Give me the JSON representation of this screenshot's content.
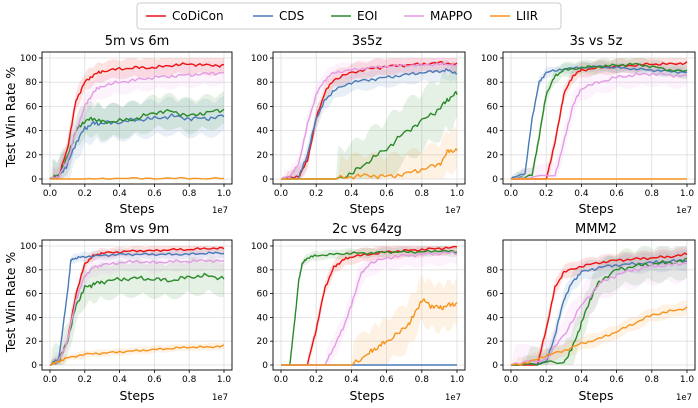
{
  "legend": [
    {
      "name": "CoDiCon",
      "color": "#ee1111"
    },
    {
      "name": "CDS",
      "color": "#4a7ab8"
    },
    {
      "name": "EOI",
      "color": "#2a8a2a"
    },
    {
      "name": "MAPPO",
      "color": "#e39be3"
    },
    {
      "name": "LIIR",
      "color": "#f7941d"
    }
  ],
  "chart_data": [
    {
      "type": "line",
      "title": "5m vs 6m",
      "xlabel": "Steps",
      "ylabel": "Test Win Rate %",
      "xlim": [
        0,
        1.0
      ],
      "ylim": [
        0,
        100
      ],
      "x_multiplier": "1e7",
      "xticks": [
        "0.0",
        "0.2",
        "0.4",
        "0.6",
        "0.8",
        "1.0"
      ],
      "yticks": [
        "0",
        "20",
        "40",
        "60",
        "80",
        "100"
      ],
      "series": [
        {
          "name": "CoDiCon",
          "x": [
            0,
            0.05,
            0.1,
            0.15,
            0.2,
            0.25,
            0.3,
            0.4,
            0.5,
            0.6,
            0.7,
            0.8,
            0.9,
            1.0
          ],
          "y": [
            0,
            2,
            25,
            65,
            80,
            86,
            89,
            91,
            92,
            92,
            94,
            95,
            94,
            94
          ],
          "band": 8
        },
        {
          "name": "CDS",
          "x": [
            0,
            0.05,
            0.1,
            0.15,
            0.2,
            0.25,
            0.3,
            0.4,
            0.5,
            0.6,
            0.7,
            0.8,
            0.9,
            1.0
          ],
          "y": [
            0,
            2,
            12,
            30,
            42,
            46,
            46,
            47,
            49,
            50,
            52,
            50,
            50,
            52
          ],
          "band": 15
        },
        {
          "name": "EOI",
          "x": [
            0,
            0.05,
            0.1,
            0.15,
            0.2,
            0.25,
            0.3,
            0.4,
            0.5,
            0.6,
            0.7,
            0.8,
            0.9,
            1.0
          ],
          "y": [
            0,
            3,
            18,
            40,
            48,
            50,
            47,
            48,
            50,
            55,
            56,
            52,
            55,
            57
          ],
          "band": 14
        },
        {
          "name": "MAPPO",
          "x": [
            0,
            0.05,
            0.1,
            0.15,
            0.2,
            0.25,
            0.3,
            0.4,
            0.5,
            0.6,
            0.7,
            0.8,
            0.9,
            1.0
          ],
          "y": [
            0,
            2,
            15,
            40,
            60,
            72,
            77,
            80,
            82,
            84,
            85,
            86,
            87,
            88
          ],
          "band": 10
        },
        {
          "name": "LIIR",
          "x": [
            0,
            0.2,
            0.4,
            0.6,
            0.8,
            1.0
          ],
          "y": [
            0,
            0,
            0.5,
            0.5,
            0.5,
            0.5
          ],
          "band": 1
        }
      ]
    },
    {
      "type": "line",
      "title": "3s5z",
      "xlabel": "Steps",
      "ylabel": "",
      "xlim": [
        0,
        1.0
      ],
      "ylim": [
        0,
        100
      ],
      "x_multiplier": "1e7",
      "xticks": [
        "0.0",
        "0.2",
        "0.4",
        "0.6",
        "0.8",
        "1.0"
      ],
      "yticks": [
        "0",
        "20",
        "40",
        "60",
        "80",
        "100"
      ],
      "series": [
        {
          "name": "CoDiCon",
          "x": [
            0,
            0.1,
            0.15,
            0.2,
            0.25,
            0.3,
            0.4,
            0.5,
            0.6,
            0.7,
            0.8,
            0.9,
            1.0
          ],
          "y": [
            0,
            2,
            15,
            50,
            72,
            82,
            88,
            91,
            93,
            94,
            95,
            96,
            95
          ],
          "band": 7
        },
        {
          "name": "CDS",
          "x": [
            0,
            0.1,
            0.15,
            0.2,
            0.25,
            0.3,
            0.4,
            0.5,
            0.6,
            0.7,
            0.8,
            0.9,
            0.95,
            1.0
          ],
          "y": [
            0,
            1,
            20,
            50,
            65,
            73,
            80,
            82,
            84,
            86,
            88,
            89,
            90,
            87
          ],
          "band": 8
        },
        {
          "name": "EOI",
          "x": [
            0,
            0.3,
            0.4,
            0.5,
            0.6,
            0.7,
            0.8,
            0.9,
            0.95,
            1.0
          ],
          "y": [
            0,
            0,
            4,
            15,
            25,
            38,
            48,
            58,
            66,
            71
          ],
          "band": 25
        },
        {
          "name": "MAPPO",
          "x": [
            0,
            0.05,
            0.1,
            0.15,
            0.2,
            0.25,
            0.3,
            0.4,
            0.5,
            0.6,
            0.7,
            0.8,
            0.9,
            1.0
          ],
          "y": [
            0,
            2,
            12,
            45,
            70,
            82,
            88,
            90,
            92,
            93,
            94,
            94,
            95,
            94
          ],
          "band": 7
        },
        {
          "name": "LIIR",
          "x": [
            0,
            0.3,
            0.4,
            0.5,
            0.6,
            0.7,
            0.8,
            0.9,
            0.95,
            1.0
          ],
          "y": [
            0,
            0,
            2,
            3,
            2,
            4,
            8,
            12,
            23,
            24
          ],
          "band": 18
        }
      ]
    },
    {
      "type": "line",
      "title": "3s vs 5z",
      "xlabel": "Steps",
      "ylabel": "",
      "xlim": [
        0,
        1.0
      ],
      "ylim": [
        0,
        100
      ],
      "x_multiplier": "1e7",
      "xticks": [
        "0.0",
        "0.2",
        "0.4",
        "0.6",
        "0.8",
        "1.0"
      ],
      "yticks": [
        "0",
        "20",
        "40",
        "60",
        "80",
        "100"
      ],
      "series": [
        {
          "name": "CoDiCon",
          "x": [
            0,
            0.2,
            0.25,
            0.3,
            0.35,
            0.4,
            0.5,
            0.6,
            0.7,
            0.8,
            0.9,
            1.0
          ],
          "y": [
            0,
            0,
            30,
            70,
            85,
            90,
            92,
            93,
            94,
            95,
            95,
            96
          ],
          "band": 6
        },
        {
          "name": "CDS",
          "x": [
            0,
            0.08,
            0.12,
            0.16,
            0.2,
            0.3,
            0.4,
            0.5,
            0.6,
            0.7,
            0.8,
            0.9,
            1.0
          ],
          "y": [
            0,
            5,
            50,
            80,
            88,
            91,
            92,
            93,
            92,
            91,
            90,
            89,
            88
          ],
          "band": 4
        },
        {
          "name": "EOI",
          "x": [
            0,
            0.12,
            0.16,
            0.2,
            0.25,
            0.3,
            0.4,
            0.5,
            0.6,
            0.7,
            0.8,
            0.9,
            1.0
          ],
          "y": [
            0,
            3,
            35,
            70,
            85,
            90,
            92,
            93,
            94,
            95,
            93,
            90,
            89
          ],
          "band": 6
        },
        {
          "name": "MAPPO",
          "x": [
            0,
            0.25,
            0.3,
            0.35,
            0.4,
            0.5,
            0.6,
            0.7,
            0.8,
            0.9,
            1.0
          ],
          "y": [
            0,
            3,
            30,
            60,
            75,
            80,
            84,
            86,
            87,
            86,
            85
          ],
          "band": 10
        },
        {
          "name": "LIIR",
          "x": [
            0,
            0.2,
            0.4,
            0.6,
            0.8,
            1.0
          ],
          "y": [
            0,
            0,
            0,
            0,
            0,
            0
          ],
          "band": 0
        }
      ]
    },
    {
      "type": "line",
      "title": "8m vs 9m",
      "xlabel": "Steps",
      "ylabel": "Test Win Rate %",
      "xlim": [
        0,
        1.0
      ],
      "ylim": [
        0,
        100
      ],
      "x_multiplier": "1e7",
      "xticks": [
        "0.0",
        "0.2",
        "0.4",
        "0.6",
        "0.8",
        "1.0"
      ],
      "yticks": [
        "0",
        "20",
        "40",
        "60",
        "80",
        "100"
      ],
      "series": [
        {
          "name": "CoDiCon",
          "x": [
            0,
            0.05,
            0.1,
            0.15,
            0.2,
            0.25,
            0.3,
            0.4,
            0.5,
            0.6,
            0.7,
            0.8,
            0.9,
            1.0
          ],
          "y": [
            0,
            3,
            20,
            60,
            85,
            92,
            94,
            95,
            96,
            96,
            97,
            97,
            98,
            98
          ],
          "band": 4
        },
        {
          "name": "CDS",
          "x": [
            0,
            0.05,
            0.1,
            0.12,
            0.15,
            0.2,
            0.3,
            0.4,
            0.5,
            0.6,
            0.7,
            0.8,
            0.9,
            1.0
          ],
          "y": [
            0,
            5,
            60,
            88,
            90,
            91,
            92,
            93,
            93,
            93,
            93,
            93,
            94,
            94
          ],
          "band": 4
        },
        {
          "name": "EOI",
          "x": [
            0,
            0.05,
            0.1,
            0.15,
            0.2,
            0.25,
            0.3,
            0.4,
            0.5,
            0.6,
            0.7,
            0.8,
            0.9,
            1.0
          ],
          "y": [
            0,
            3,
            20,
            50,
            65,
            68,
            70,
            72,
            73,
            72,
            71,
            74,
            75,
            73
          ],
          "band": 15
        },
        {
          "name": "MAPPO",
          "x": [
            0,
            0.05,
            0.1,
            0.15,
            0.2,
            0.25,
            0.3,
            0.4,
            0.5,
            0.6,
            0.7,
            0.8,
            0.9,
            1.0
          ],
          "y": [
            0,
            3,
            20,
            55,
            75,
            82,
            84,
            86,
            87,
            86,
            87,
            87,
            88,
            87
          ],
          "band": 8
        },
        {
          "name": "LIIR",
          "x": [
            0,
            0.05,
            0.1,
            0.2,
            0.3,
            0.4,
            0.5,
            0.6,
            0.7,
            0.8,
            0.9,
            1.0
          ],
          "y": [
            0,
            3,
            6,
            9,
            10,
            11,
            12,
            13,
            14,
            15,
            15,
            16
          ],
          "band": 3
        }
      ]
    },
    {
      "type": "line",
      "title": "2c vs 64zg",
      "xlabel": "Steps",
      "ylabel": "",
      "xlim": [
        0,
        1.0
      ],
      "ylim": [
        0,
        100
      ],
      "x_multiplier": "1e7",
      "xticks": [
        "0.0",
        "0.2",
        "0.4",
        "0.6",
        "0.8",
        "1.0"
      ],
      "yticks": [
        "0",
        "20",
        "40",
        "60",
        "80",
        "100"
      ],
      "series": [
        {
          "name": "CoDiCon",
          "x": [
            0,
            0.15,
            0.2,
            0.25,
            0.3,
            0.35,
            0.4,
            0.5,
            0.6,
            0.7,
            0.8,
            0.9,
            1.0
          ],
          "y": [
            0,
            0,
            30,
            65,
            82,
            88,
            91,
            93,
            95,
            96,
            97,
            98,
            99
          ],
          "band": 6
        },
        {
          "name": "CDS",
          "x": [
            0,
            0.2,
            0.4,
            0.6,
            0.8,
            1.0
          ],
          "y": [
            0,
            0,
            0,
            0,
            0,
            0
          ],
          "band": 0
        },
        {
          "name": "EOI",
          "x": [
            0,
            0.05,
            0.08,
            0.1,
            0.12,
            0.15,
            0.2,
            0.3,
            0.4,
            0.5,
            0.6,
            0.7,
            0.8,
            0.9,
            1.0
          ],
          "y": [
            0,
            0,
            40,
            70,
            85,
            90,
            92,
            93,
            94,
            94,
            95,
            95,
            95,
            96,
            95
          ],
          "band": 4
        },
        {
          "name": "MAPPO",
          "x": [
            0,
            0.25,
            0.3,
            0.35,
            0.4,
            0.45,
            0.5,
            0.6,
            0.7,
            0.8,
            0.9,
            1.0
          ],
          "y": [
            0,
            0,
            15,
            30,
            50,
            75,
            85,
            90,
            92,
            93,
            94,
            94
          ],
          "band": 10
        },
        {
          "name": "LIIR",
          "x": [
            0,
            0.4,
            0.5,
            0.55,
            0.6,
            0.7,
            0.75,
            0.8,
            0.85,
            0.9,
            0.95,
            1.0
          ],
          "y": [
            0,
            0,
            10,
            15,
            20,
            30,
            40,
            55,
            50,
            48,
            50,
            52
          ],
          "band": 20
        }
      ]
    },
    {
      "type": "line",
      "title": "MMM2",
      "xlabel": "Steps",
      "ylabel": "",
      "xlim": [
        0,
        1.0
      ],
      "ylim": [
        0,
        100
      ],
      "x_multiplier": "1e7",
      "xticks": [
        "0.0",
        "0.2",
        "0.4",
        "0.6",
        "0.8",
        "1.0"
      ],
      "yticks": [
        "0",
        "20",
        "40",
        "60",
        "80"
      ],
      "series": [
        {
          "name": "CoDiCon",
          "x": [
            0,
            0.15,
            0.2,
            0.25,
            0.3,
            0.4,
            0.5,
            0.6,
            0.7,
            0.8,
            0.9,
            1.0
          ],
          "y": [
            0,
            0,
            30,
            65,
            78,
            83,
            86,
            88,
            89,
            90,
            91,
            93
          ],
          "band": 6
        },
        {
          "name": "CDS",
          "x": [
            0,
            0.2,
            0.25,
            0.3,
            0.35,
            0.4,
            0.5,
            0.6,
            0.7,
            0.8,
            0.9,
            1.0
          ],
          "y": [
            0,
            2,
            25,
            55,
            70,
            78,
            82,
            84,
            85,
            86,
            87,
            88
          ],
          "band": 8
        },
        {
          "name": "EOI",
          "x": [
            0,
            0.3,
            0.35,
            0.4,
            0.45,
            0.5,
            0.6,
            0.7,
            0.8,
            0.9,
            1.0
          ],
          "y": [
            0,
            2,
            15,
            35,
            55,
            70,
            80,
            83,
            85,
            86,
            88
          ],
          "band": 15
        },
        {
          "name": "MAPPO",
          "x": [
            0,
            0.2,
            0.3,
            0.4,
            0.5,
            0.6,
            0.7,
            0.8,
            0.9,
            1.0
          ],
          "y": [
            0,
            5,
            25,
            50,
            68,
            76,
            80,
            83,
            84,
            86
          ],
          "band": 15
        },
        {
          "name": "LIIR",
          "x": [
            0,
            0.1,
            0.2,
            0.3,
            0.4,
            0.5,
            0.6,
            0.7,
            0.8,
            0.9,
            1.0
          ],
          "y": [
            0,
            2,
            8,
            12,
            18,
            22,
            28,
            35,
            42,
            45,
            48
          ],
          "band": 6
        }
      ]
    }
  ]
}
